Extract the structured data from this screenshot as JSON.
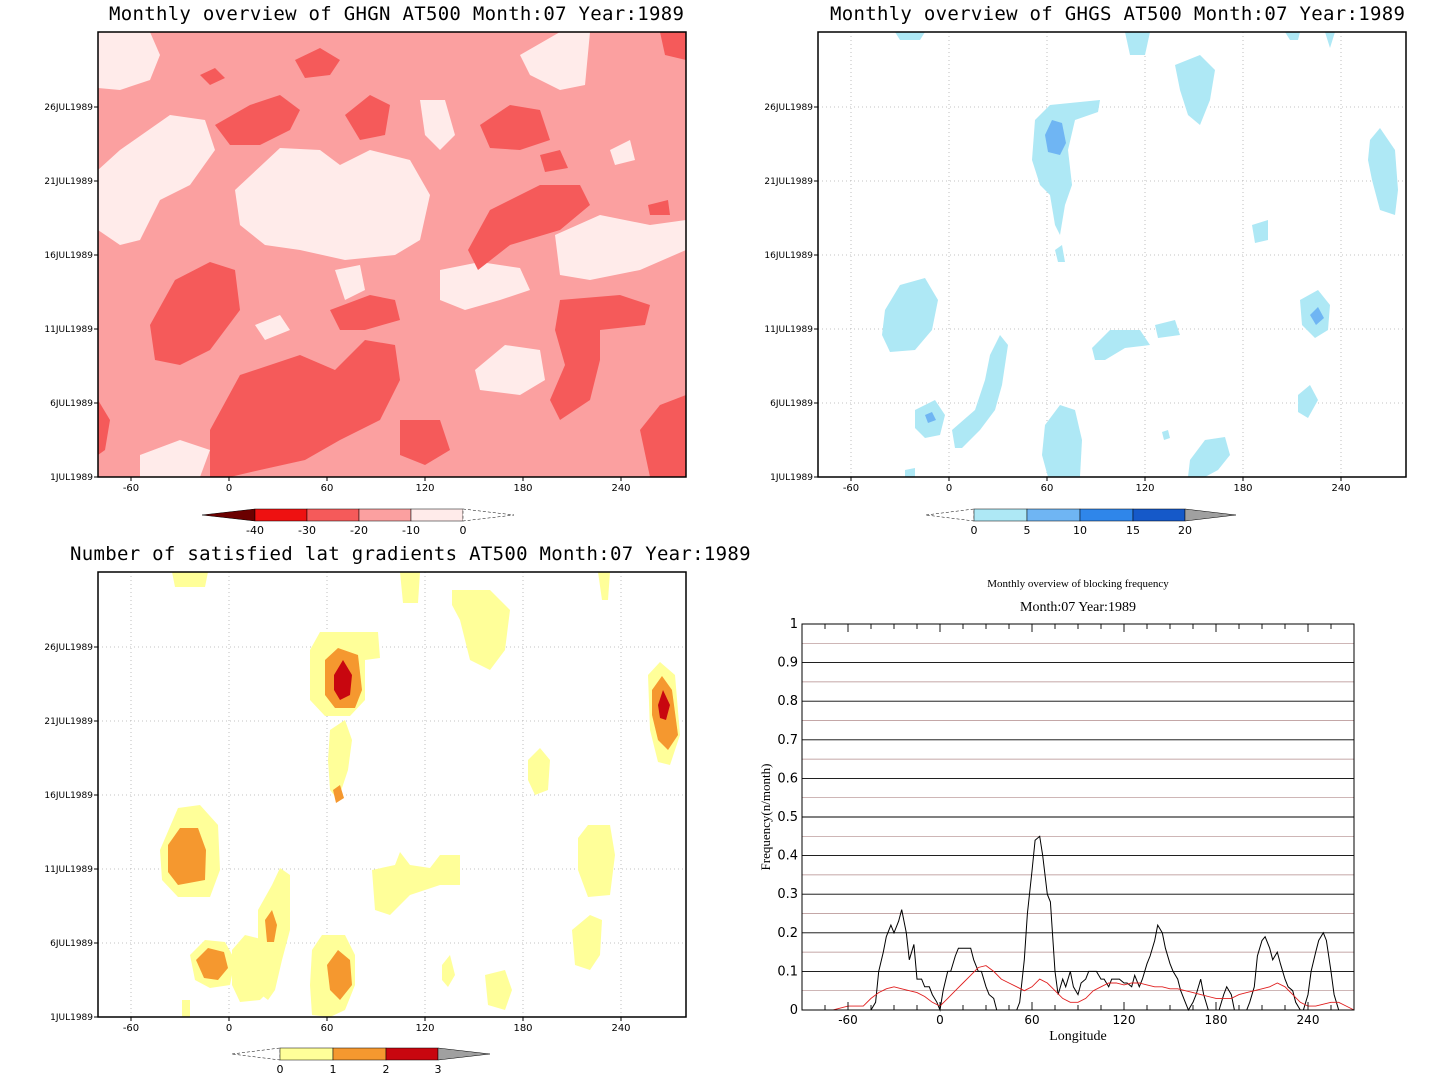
{
  "panels": [
    {
      "title": "Monthly overview of GHGN AT500 Month:07 Year:1989",
      "y_ticks": [
        "1JUL1989",
        "6JUL1989",
        "11JUL1989",
        "16JUL1989",
        "21JUL1989",
        "26JUL1989"
      ],
      "x_ticks": [
        "-60",
        "0",
        "60",
        "120",
        "180",
        "240"
      ],
      "colorbar_labels": [
        "-40",
        "-30",
        "-20",
        "-10",
        "0"
      ],
      "colorbar_colors": [
        "#6b0000",
        "#ee1111",
        "#f55a5a",
        "#fba0a0",
        "#ffebea"
      ]
    },
    {
      "title": "Monthly overview of GHGS AT500 Month:07 Year:1989",
      "y_ticks": [
        "1JUL1989",
        "6JUL1989",
        "11JUL1989",
        "16JUL1989",
        "21JUL1989",
        "26JUL1989"
      ],
      "x_ticks": [
        "-60",
        "0",
        "60",
        "120",
        "180",
        "240"
      ],
      "colorbar_labels": [
        "0",
        "5",
        "10",
        "15",
        "20"
      ],
      "colorbar_colors": [
        "#aee8f5",
        "#6fb5f3",
        "#2f86ea",
        "#1559c9",
        "#a0a0a0"
      ]
    },
    {
      "title": "Number of satisfied lat gradients AT500 Month:07 Year:1989",
      "y_ticks": [
        "1JUL1989",
        "6JUL1989",
        "11JUL1989",
        "16JUL1989",
        "21JUL1989",
        "26JUL1989"
      ],
      "x_ticks": [
        "-60",
        "0",
        "60",
        "120",
        "180",
        "240"
      ],
      "colorbar_labels": [
        "0",
        "1",
        "2",
        "3"
      ],
      "colorbar_colors": [
        "#ffff99",
        "#f5982f",
        "#c8060f",
        "#a0a0a0"
      ]
    }
  ],
  "chart_data": [
    {
      "type": "heatmap",
      "title": "Monthly overview of GHGN AT500 Month:07 Year:1989",
      "xlim": [
        -72,
        288
      ],
      "x_ticks": [
        -60,
        0,
        60,
        120,
        180,
        240
      ],
      "y_ticks": [
        "1JUL1989",
        "6JUL1989",
        "11JUL1989",
        "16JUL1989",
        "21JUL1989",
        "26JUL1989"
      ],
      "levels": [
        -40,
        -30,
        -20,
        -10,
        0
      ],
      "grid": false
    },
    {
      "type": "heatmap",
      "title": "Monthly overview of GHGS AT500 Month:07 Year:1989",
      "xlim": [
        -72,
        288
      ],
      "x_ticks": [
        -60,
        0,
        60,
        120,
        180,
        240
      ],
      "y_ticks": [
        "1JUL1989",
        "6JUL1989",
        "11JUL1989",
        "16JUL1989",
        "21JUL1989",
        "26JUL1989"
      ],
      "levels": [
        0,
        5,
        10,
        15,
        20
      ],
      "grid": true
    },
    {
      "type": "heatmap",
      "title": "Number of satisfied lat gradients AT500 Month:07 Year:1989",
      "xlim": [
        -72,
        288
      ],
      "x_ticks": [
        -60,
        0,
        60,
        120,
        180,
        240
      ],
      "y_ticks": [
        "1JUL1989",
        "6JUL1989",
        "11JUL1989",
        "16JUL1989",
        "21JUL1989",
        "26JUL1989"
      ],
      "levels": [
        0,
        1,
        2,
        3
      ],
      "grid": true
    },
    {
      "type": "line",
      "title": "Monthly overview of blocking frequency",
      "subtitle": "Month:07 Year:1989",
      "xlabel": "Longitude",
      "ylabel": "Frequency(n/month)",
      "xlim": [
        -90,
        270
      ],
      "ylim": [
        0,
        1
      ],
      "x_ticks": [
        -60,
        0,
        60,
        120,
        180,
        240
      ],
      "y_ticks": [
        0,
        0.1,
        0.2,
        0.3,
        0.4,
        0.5,
        0.6,
        0.7,
        0.8,
        0.9,
        1
      ],
      "y_tick_labels": [
        "0",
        "0.1",
        "0.2",
        "0.3",
        "0.4",
        "0.5",
        "0.6",
        "0.7",
        "0.8",
        "0.9",
        "1"
      ],
      "grid": true,
      "series": [
        {
          "color": "#000000",
          "x": [
            -90,
            -70,
            -62,
            -60,
            -57,
            -55,
            -52,
            -50,
            -47,
            -45,
            -42,
            -40,
            -37,
            -35,
            -32,
            -30,
            -27,
            -25,
            -22,
            -20,
            -17,
            -15,
            -12,
            -10,
            -7,
            -5,
            -2,
            0,
            2,
            5,
            7,
            10,
            12,
            15,
            17,
            20,
            22,
            25,
            27,
            30,
            32,
            35,
            37,
            40,
            42,
            45,
            47,
            50,
            52,
            55,
            57,
            60,
            62,
            65,
            67,
            70,
            72,
            75,
            77,
            80,
            82,
            85,
            87,
            90,
            92,
            95,
            97,
            100,
            102,
            105,
            107,
            110,
            112,
            115,
            117,
            120,
            122,
            125,
            127,
            130,
            132,
            135,
            137,
            140,
            142,
            145,
            147,
            150,
            152,
            155,
            157,
            160,
            162,
            165,
            167,
            170,
            172,
            175,
            177,
            180,
            182,
            185,
            187,
            190,
            192,
            195,
            197,
            200,
            202,
            205,
            207,
            210,
            212,
            215,
            217,
            220,
            222,
            225,
            227,
            230,
            232,
            235,
            237,
            240,
            242,
            245,
            247,
            250,
            252,
            255,
            257,
            260,
            262,
            265,
            267,
            270
          ],
          "y": [
            0,
            0,
            0,
            0,
            0,
            0,
            0,
            0,
            0,
            0,
            0.02,
            0.1,
            0.15,
            0.19,
            0.22,
            0.2,
            0.23,
            0.26,
            0.2,
            0.13,
            0.17,
            0.08,
            0.08,
            0.06,
            0.06,
            0.04,
            0.02,
            0,
            0.05,
            0.1,
            0.1,
            0.14,
            0.16,
            0.16,
            0.16,
            0.16,
            0.13,
            0.1,
            0.1,
            0.06,
            0.04,
            0.03,
            0,
            0,
            0,
            0,
            0,
            0,
            0.02,
            0.13,
            0.25,
            0.36,
            0.44,
            0.45,
            0.4,
            0.3,
            0.28,
            0.1,
            0.04,
            0.08,
            0.06,
            0.1,
            0.06,
            0.04,
            0.07,
            0.08,
            0.1,
            0.1,
            0.1,
            0.08,
            0.08,
            0.06,
            0.08,
            0.08,
            0.08,
            0.07,
            0.07,
            0.06,
            0.09,
            0.06,
            0.08,
            0.12,
            0.14,
            0.18,
            0.22,
            0.2,
            0.16,
            0.12,
            0.1,
            0.08,
            0.05,
            0.02,
            0,
            0.02,
            0.04,
            0.08,
            0.04,
            0,
            0,
            0,
            0,
            0.04,
            0.06,
            0.04,
            0,
            0,
            0,
            0,
            0.02,
            0.06,
            0.14,
            0.18,
            0.19,
            0.16,
            0.13,
            0.15,
            0.12,
            0.08,
            0.06,
            0.05,
            0.02,
            0,
            0,
            0.04,
            0.1,
            0.15,
            0.18,
            0.2,
            0.18,
            0.1,
            0.04,
            0,
            0,
            0,
            0,
            0
          ]
        },
        {
          "color": "#e02020",
          "x": [
            -90,
            -70,
            -60,
            -50,
            -45,
            -40,
            -35,
            -30,
            -25,
            -20,
            -15,
            -10,
            -5,
            0,
            5,
            10,
            15,
            20,
            25,
            30,
            35,
            40,
            45,
            50,
            55,
            60,
            65,
            70,
            75,
            80,
            85,
            90,
            95,
            100,
            105,
            110,
            115,
            120,
            125,
            130,
            135,
            140,
            145,
            150,
            155,
            160,
            165,
            170,
            175,
            180,
            185,
            190,
            195,
            200,
            205,
            210,
            215,
            220,
            225,
            230,
            235,
            240,
            245,
            250,
            255,
            260,
            265,
            270
          ],
          "y": [
            0,
            0,
            0.01,
            0.01,
            0.03,
            0.045,
            0.055,
            0.06,
            0.055,
            0.05,
            0.045,
            0.035,
            0.02,
            0.01,
            0.03,
            0.05,
            0.07,
            0.09,
            0.11,
            0.115,
            0.1,
            0.08,
            0.07,
            0.06,
            0.05,
            0.06,
            0.08,
            0.07,
            0.05,
            0.03,
            0.02,
            0.02,
            0.03,
            0.05,
            0.06,
            0.07,
            0.07,
            0.065,
            0.07,
            0.07,
            0.065,
            0.06,
            0.06,
            0.055,
            0.055,
            0.05,
            0.045,
            0.04,
            0.035,
            0.03,
            0.03,
            0.03,
            0.04,
            0.045,
            0.05,
            0.055,
            0.06,
            0.07,
            0.06,
            0.04,
            0.02,
            0.01,
            0.01,
            0.015,
            0.02,
            0.02,
            0.01,
            0
          ]
        }
      ]
    }
  ],
  "line_chart": {
    "title": "Monthly overview of blocking frequency",
    "subtitle": "Month:07 Year:1989",
    "xlabel": "Longitude",
    "ylabel": "Frequency(n/month)"
  }
}
